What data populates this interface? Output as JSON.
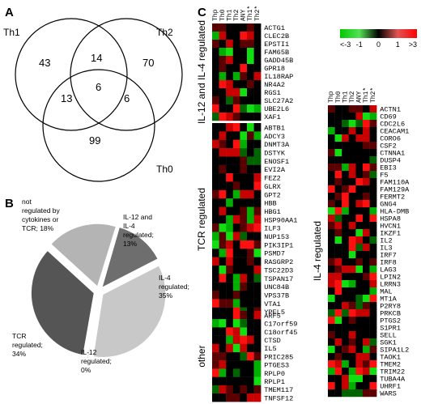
{
  "panels": {
    "A": "A",
    "B": "B",
    "C": "C"
  },
  "venn": {
    "labels": {
      "th1": "Th1",
      "th2": "Th2",
      "th0": "Th0"
    },
    "counts": {
      "th1_only": "43",
      "th2_only": "70",
      "th0_only": "99",
      "th1_th2": "14",
      "th1_th0": "13",
      "th2_th0": "6",
      "all": "6"
    }
  },
  "pie": {
    "slices": [
      {
        "label": "IL-12 and IL-4 regulated; 13%",
        "value": 13,
        "color": "#6e6e6e"
      },
      {
        "label": "IL-4 regulated; 35%",
        "value": 35,
        "color": "#c8c8c8"
      },
      {
        "label": "IL-12 regulated; 0%",
        "value": 0,
        "color": "#a0a0a0"
      },
      {
        "label": "TCR regulated; 34%",
        "value": 34,
        "color": "#555555"
      },
      {
        "label": "not regulated by cytokines or TCR; 18%",
        "value": 18,
        "color": "#b4b4b4"
      }
    ]
  },
  "heatmap": {
    "colorbar": {
      "ticks": [
        "<-3",
        "-1",
        "0",
        "1",
        ">3"
      ],
      "colors": [
        "#00c800",
        "#55e055",
        "#000000",
        "#e05555",
        "#ff0000"
      ]
    },
    "columns": [
      "Thp",
      "Th0",
      "Th1",
      "Th2",
      "ANY",
      "Th1*",
      "Th2*"
    ],
    "groups": {
      "il12_il4": {
        "label": "IL-12 and IL-4 regulated",
        "genes": [
          "ACTG1",
          "CLEC2B",
          "EPSTI1",
          "FAM65B",
          "GADD45B",
          "GPR18",
          "IL18RAP",
          "NR4A2",
          "RGS1",
          "SLC27A2",
          "UBE2L6",
          "XAF1"
        ]
      },
      "tcr": {
        "label": "TCR regulated",
        "genes": [
          "ABTB1",
          "ADCY3",
          "DNMT3A",
          "DSTYK",
          "ENOSF1",
          "EVI2A",
          "FEZ2",
          "GLRX",
          "GPT2",
          "HBB",
          "HBG1",
          "HSP90AA1",
          "ILF3",
          "NUP153",
          "PIK3IP1",
          "PSMD7",
          "RASGRP2",
          "TSC22D3",
          "TSPAN17",
          "UNC84B",
          "VPS37B",
          "VTA1",
          "YPEL5"
        ]
      },
      "other": {
        "label": "other",
        "genes": [
          "ARF5",
          "C17orf59",
          "C18orf45",
          "CTSD",
          "IL5",
          "PRIC285",
          "PTGES3",
          "RPLP0",
          "RPLP1",
          "TMEM117",
          "TNFSF12"
        ]
      },
      "il4": {
        "label": "IL-4 regulated",
        "genes": [
          "ACTN1",
          "CD69",
          "CDC2L6",
          "CEACAM1",
          "CORO6",
          "CSF2",
          "CTNNA1",
          "DUSP4",
          "EBI3",
          "F5",
          "FAM110A",
          "FAM129A",
          "FERMT2",
          "GNG4",
          "HLA-DMB",
          "HSPA8",
          "HVCN1",
          "IKZF1",
          "IL2",
          "IL3",
          "IRF7",
          "IRF8",
          "LAG3",
          "LPIN2",
          "LRRN3",
          "MAL",
          "MT1A",
          "P2RY8",
          "PRKCB",
          "PTGS2",
          "S1PR1",
          "SELL",
          "SGK1",
          "SIPA1L2",
          "TAOK1",
          "TMEM2",
          "TRIM22",
          "TUBA4A",
          "UHRF1",
          "WARS"
        ]
      }
    }
  }
}
